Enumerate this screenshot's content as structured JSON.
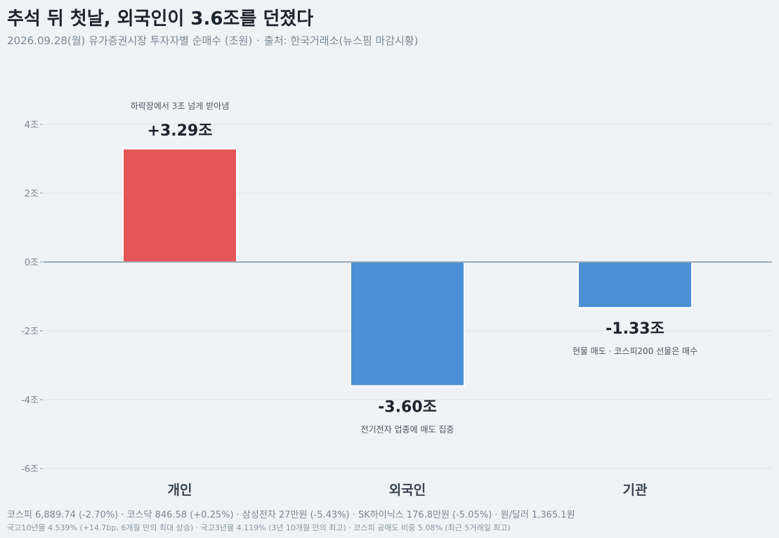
{
  "header": {
    "title": "추석 뒤 첫날, 외국인이 3.6조를 던졌다",
    "subtitle": "2026.09.28(월) 유가증권시장 투자자별 순매수 (조원)",
    "source": "출처: 한국거래소(뉴스핌 마감시황)"
  },
  "chart_data": {
    "type": "bar",
    "title": "추석 뒤 첫날, 외국인이 3.6조를 던졌다",
    "subtitle": "2026.09.28(월) 유가증권시장 투자자별 순매수 (조원)",
    "categories": [
      "개인",
      "외국인",
      "기관"
    ],
    "values": [
      3.29,
      -3.6,
      -1.33
    ],
    "value_labels": [
      "+3.29조",
      "-3.60조",
      "-1.33조"
    ],
    "annotations": [
      "하락장에서 3조 넘게 받아냄",
      "전기전자 업종에 매도 집중",
      "현물 매도 · 코스피200 선물은 매수"
    ],
    "bar_colors": [
      "#e55757",
      "#4a90d2",
      "#4a90d2"
    ],
    "ylim": [
      -6,
      4
    ],
    "yticks": [
      4,
      2,
      0,
      -2,
      -4,
      -6
    ],
    "ytick_labels": [
      "4조",
      "2조",
      "0조",
      "-2조",
      "-4조",
      "-6조"
    ],
    "grid": true,
    "xlabel": "",
    "ylabel": ""
  },
  "footer": {
    "line1": "코스피 6,889.74 (-2.70%) · 코스닥 846.58 (+0.25%) · 삼성전자 27만원 (-5.43%) · SK하이닉스 176.8만원 (-5.05%) · 원/달러 1,365.1원",
    "line2": "국고10년물 4.539% (+14.7bp, 6개월 만의 최대 상승) · 국고3년물 4.119% (3년 10개월 만의 최고) · 코스피 공매도 비중 5.08% (최근 5거래일 최고)"
  }
}
